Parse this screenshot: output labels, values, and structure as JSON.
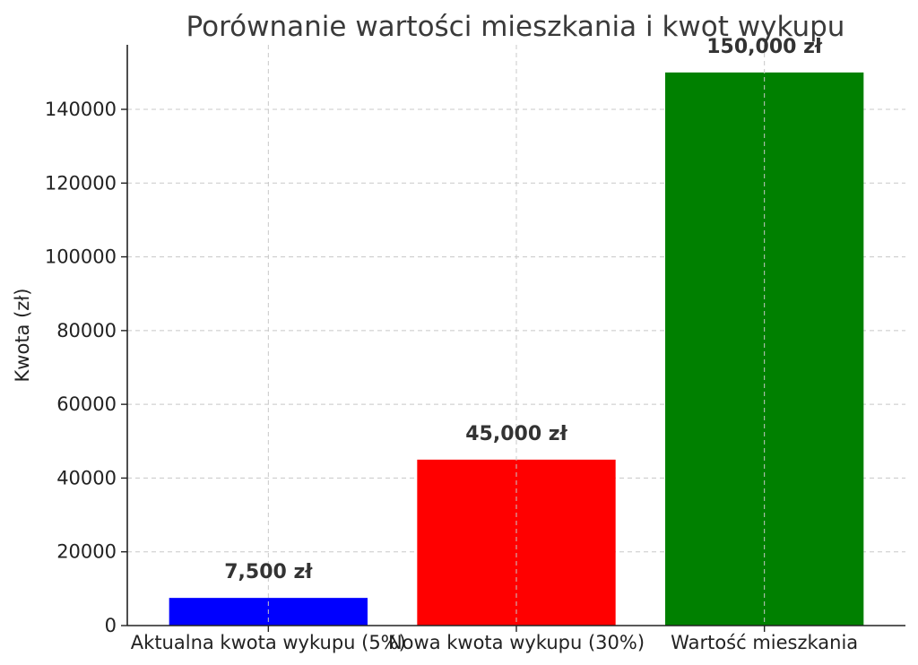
{
  "chart_data": {
    "type": "bar",
    "title": "Porównanie wartości mieszkania i kwot wykupu",
    "xlabel": "",
    "ylabel": "Kwota (zł)",
    "categories": [
      "Aktualna kwota wykupu (5%)",
      "Nowa kwota wykupu (30%)",
      "Wartość mieszkania"
    ],
    "values": [
      7500,
      45000,
      150000
    ],
    "data_labels": [
      "7,500 zł",
      "45,000 zł",
      "150,000 zł"
    ],
    "colors": [
      "#0000ff",
      "#ff0000",
      "#008000"
    ],
    "ylim": [
      0,
      157500
    ],
    "yticks": [
      0,
      20000,
      40000,
      60000,
      80000,
      100000,
      120000,
      140000
    ],
    "ytick_labels": [
      "0",
      "20000",
      "40000",
      "60000",
      "80000",
      "100000",
      "120000",
      "140000"
    ],
    "grid": true,
    "legend": "none"
  }
}
